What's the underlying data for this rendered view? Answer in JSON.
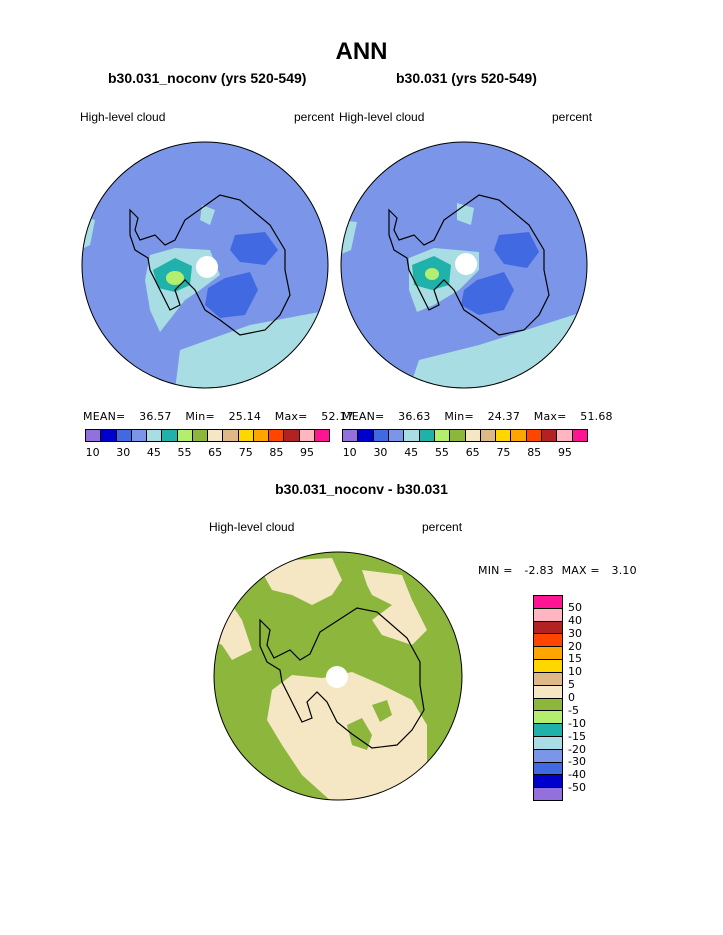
{
  "title": "ANN",
  "panels": [
    {
      "case": "b30.031_noconv (yrs 520-549)",
      "variable": "High-level cloud",
      "units": "percent",
      "stats": {
        "mean_label": "MEAN=",
        "mean": "36.57",
        "min_label": "Min=",
        "min": "25.14",
        "max_label": "Max=",
        "max": "52.17"
      }
    },
    {
      "case": "b30.031 (yrs 520-549)",
      "variable": "High-level cloud",
      "units": "percent",
      "stats": {
        "mean_label": "MEAN=",
        "mean": "36.63",
        "min_label": "Min=",
        "min": "24.37",
        "max_label": "Max=",
        "max": "51.68"
      }
    }
  ],
  "abs_colorbar": {
    "colors": [
      "#9370DB",
      "#0000CD",
      "#4169E1",
      "#7B96E8",
      "#A8DDE3",
      "#20B2AA",
      "#B4EE6E",
      "#8DB63C",
      "#F5E6C4",
      "#DEB887",
      "#FFD700",
      "#FFA500",
      "#FF4500",
      "#B22222",
      "#FFB6C1",
      "#FF1493"
    ],
    "labels": [
      "10",
      "30",
      "45",
      "55",
      "65",
      "75",
      "85",
      "95"
    ]
  },
  "diff": {
    "title": "b30.031_noconv - b30.031",
    "variable": "High-level cloud",
    "units": "percent",
    "stats": {
      "min_label": "MIN =",
      "min": "-2.83",
      "max_label": "MAX =",
      "max": "3.10"
    },
    "colorbar": {
      "colors": [
        "#FF1493",
        "#FFB6C1",
        "#B22222",
        "#FF4500",
        "#FFA500",
        "#FFD700",
        "#DEB887",
        "#F5E6C4",
        "#8DB63C",
        "#B4EE6E",
        "#20B2AA",
        "#A8DDE3",
        "#7B96E8",
        "#4169E1",
        "#0000CD",
        "#9370DB"
      ],
      "labels": [
        "50",
        "40",
        "30",
        "20",
        "15",
        "10",
        "5",
        "0",
        "-5",
        "-10",
        "-15",
        "-20",
        "-30",
        "-40",
        "-50"
      ]
    }
  }
}
